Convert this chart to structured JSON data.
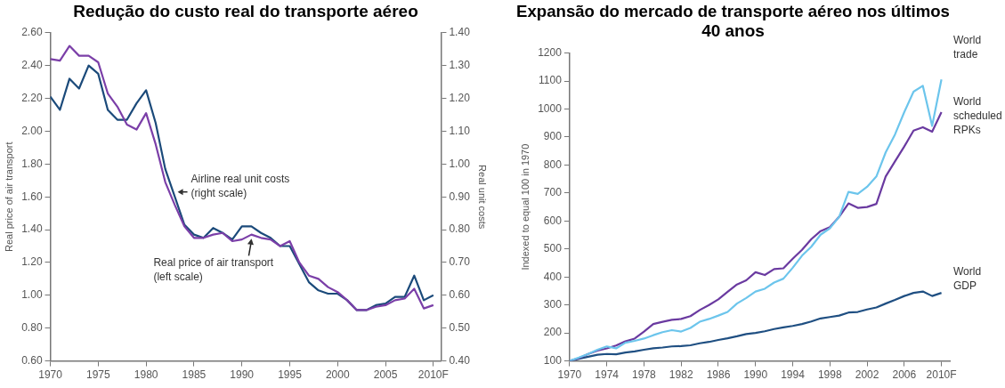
{
  "chart_data": [
    {
      "type": "line",
      "title": "Redução do custo real do transporte aéreo",
      "ylabel": "Real price of air transport",
      "y2label": "Real unit costs",
      "x": [
        1970,
        1971,
        1972,
        1973,
        1974,
        1975,
        1976,
        1977,
        1978,
        1979,
        1980,
        1981,
        1982,
        1983,
        1984,
        1985,
        1986,
        1987,
        1988,
        1989,
        1990,
        1991,
        1992,
        1993,
        1994,
        1995,
        1996,
        1997,
        1998,
        1999,
        2000,
        2001,
        2002,
        2003,
        2004,
        2005,
        2006,
        2007,
        2008,
        2009,
        2010
      ],
      "series": [
        {
          "color": "#7b3fa8",
          "values": [
            2.44,
            2.43,
            2.52,
            2.46,
            2.46,
            2.42,
            2.23,
            2.15,
            2.04,
            2.01,
            2.11,
            1.92,
            1.69,
            1.55,
            1.42,
            1.35,
            1.35,
            1.37,
            1.38,
            1.33,
            1.34,
            1.37,
            1.35,
            1.34,
            1.3,
            1.33,
            1.2,
            1.12,
            1.1,
            1.05,
            1.02,
            0.97,
            0.91,
            0.91,
            0.93,
            0.94,
            0.97,
            0.98,
            1.04,
            0.92,
            0.94
          ]
        },
        {
          "color": "#1b4a7a",
          "axis": "y2",
          "values": [
            1.205,
            1.165,
            1.26,
            1.23,
            1.3,
            1.275,
            1.165,
            1.135,
            1.135,
            1.185,
            1.225,
            1.125,
            0.985,
            0.9,
            0.815,
            0.785,
            0.775,
            0.805,
            0.79,
            0.77,
            0.81,
            0.81,
            0.79,
            0.775,
            0.75,
            0.75,
            0.695,
            0.64,
            0.615,
            0.605,
            0.605,
            0.585,
            0.555,
            0.555,
            0.57,
            0.575,
            0.595,
            0.595,
            0.66,
            0.585,
            0.6
          ]
        }
      ],
      "xlim": [
        1970,
        2010.8
      ],
      "xticks": [
        1970,
        1975,
        1980,
        1985,
        1990,
        1995,
        2000,
        2005,
        {
          "value": 2010,
          "label": "2010F"
        }
      ],
      "ylim": [
        0.6,
        2.6
      ],
      "yticks": [
        {
          "value": 0.6,
          "label": "0.60"
        },
        {
          "value": 0.8,
          "label": "0.80"
        },
        {
          "value": 1.0,
          "label": "1.00"
        },
        {
          "value": 1.2,
          "label": "1.20"
        },
        {
          "value": 1.4,
          "label": "1.40"
        },
        {
          "value": 1.6,
          "label": "1.60"
        },
        {
          "value": 1.8,
          "label": "1.80"
        },
        {
          "value": 2.0,
          "label": "2.00"
        },
        {
          "value": 2.2,
          "label": "2.20"
        },
        {
          "value": 2.4,
          "label": "2.40"
        },
        {
          "value": 2.6,
          "label": "2.60"
        }
      ],
      "y2lim": [
        0.4,
        1.4
      ],
      "y2ticks": [
        {
          "value": 0.4,
          "label": "0.40"
        },
        {
          "value": 0.5,
          "label": "0.50"
        },
        {
          "value": 0.6,
          "label": "0.60"
        },
        {
          "value": 0.7,
          "label": "0.70"
        },
        {
          "value": 0.8,
          "label": "0.80"
        },
        {
          "value": 0.9,
          "label": "0.90"
        },
        {
          "value": 1.0,
          "label": "1.00"
        },
        {
          "value": 1.1,
          "label": "1.10"
        },
        {
          "value": 1.2,
          "label": "1.20"
        },
        {
          "value": 1.3,
          "label": "1.30"
        },
        {
          "value": 1.4,
          "label": "1.40"
        }
      ],
      "annotations": [
        {
          "text": "Airline real unit costs\n(right scale)",
          "x": 1983.2,
          "y": 1.63
        },
        {
          "text": "Real price of air transport\n(left scale)",
          "x": 1991,
          "y": 1.35
        }
      ],
      "legend": false,
      "marker": "none"
    },
    {
      "type": "line",
      "title": "Expansão do mercado de transporte aéreo nos últimos 40 anos",
      "ylabel": "Indexed to equal 100 in 1970",
      "x": [
        1970,
        1971,
        1972,
        1973,
        1974,
        1975,
        1976,
        1977,
        1978,
        1979,
        1980,
        1981,
        1982,
        1983,
        1984,
        1985,
        1986,
        1987,
        1988,
        1989,
        1990,
        1991,
        1992,
        1993,
        1994,
        1995,
        1996,
        1997,
        1998,
        1999,
        2000,
        2001,
        2002,
        2003,
        2004,
        2005,
        2006,
        2007,
        2008,
        2009,
        2010
      ],
      "series": [
        {
          "name": "World trade",
          "color": "#6cc5ec",
          "values": [
            100,
            112,
            125,
            140,
            152,
            145,
            165,
            172,
            180,
            192,
            203,
            210,
            205,
            218,
            240,
            250,
            262,
            275,
            305,
            325,
            348,
            358,
            380,
            394,
            433,
            476,
            508,
            551,
            574,
            615,
            704,
            697,
            722,
            759,
            845,
            909,
            989,
            1062,
            1083,
            940,
            1106
          ]
        },
        {
          "name": "World scheduled RPKs",
          "color": "#6a3aa0",
          "values": [
            100,
            110,
            125,
            137,
            145,
            155,
            170,
            180,
            205,
            232,
            240,
            247,
            250,
            260,
            282,
            300,
            320,
            347,
            373,
            388,
            417,
            407,
            428,
            431,
            465,
            497,
            535,
            564,
            578,
            615,
            663,
            647,
            650,
            661,
            759,
            813,
            866,
            923,
            935,
            919,
            989
          ]
        },
        {
          "name": "World GDP",
          "color": "#1f4f82",
          "values": [
            100,
            108,
            115,
            122,
            125,
            124,
            130,
            134,
            140,
            145,
            148,
            152,
            153,
            156,
            163,
            168,
            175,
            181,
            188,
            196,
            200,
            206,
            214,
            220,
            225,
            232,
            241,
            252,
            257,
            262,
            273,
            275,
            284,
            291,
            305,
            318,
            332,
            343,
            348,
            332,
            343
          ]
        }
      ],
      "xlim": [
        1970,
        2010.9
      ],
      "xticks": [
        1970,
        1974,
        1978,
        1982,
        1986,
        1990,
        1994,
        1998,
        2002,
        2006,
        {
          "value": 2010,
          "label": "2010F"
        }
      ],
      "ylim": [
        100,
        1200
      ],
      "yticks": [
        100,
        200,
        300,
        400,
        500,
        600,
        700,
        800,
        900,
        1000,
        1100,
        1200
      ],
      "legend": false,
      "marker": "none"
    }
  ]
}
